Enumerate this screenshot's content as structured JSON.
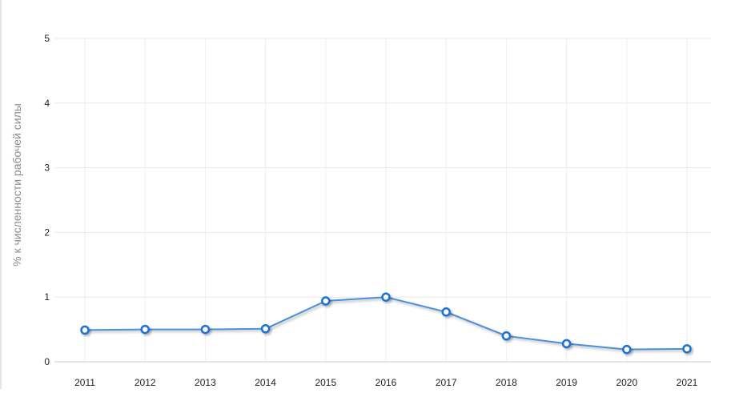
{
  "chart_data": {
    "type": "line",
    "title": "",
    "xlabel": "",
    "ylabel": "% к численности рабочей силы",
    "x": [
      "2011",
      "2012",
      "2013",
      "2014",
      "2015",
      "2016",
      "2017",
      "2018",
      "2019",
      "2020",
      "2021"
    ],
    "y_ticks": [
      "0",
      "1",
      "2",
      "3",
      "4",
      "5"
    ],
    "ylim": [
      0,
      5
    ],
    "grid": true,
    "legend": "none",
    "series": [
      {
        "values": [
          0.49,
          0.5,
          0.5,
          0.51,
          0.94,
          1.0,
          0.77,
          0.4,
          0.28,
          0.19,
          0.2
        ],
        "color": "#4a90d9",
        "marker_color": "#1a6fd6"
      }
    ]
  }
}
